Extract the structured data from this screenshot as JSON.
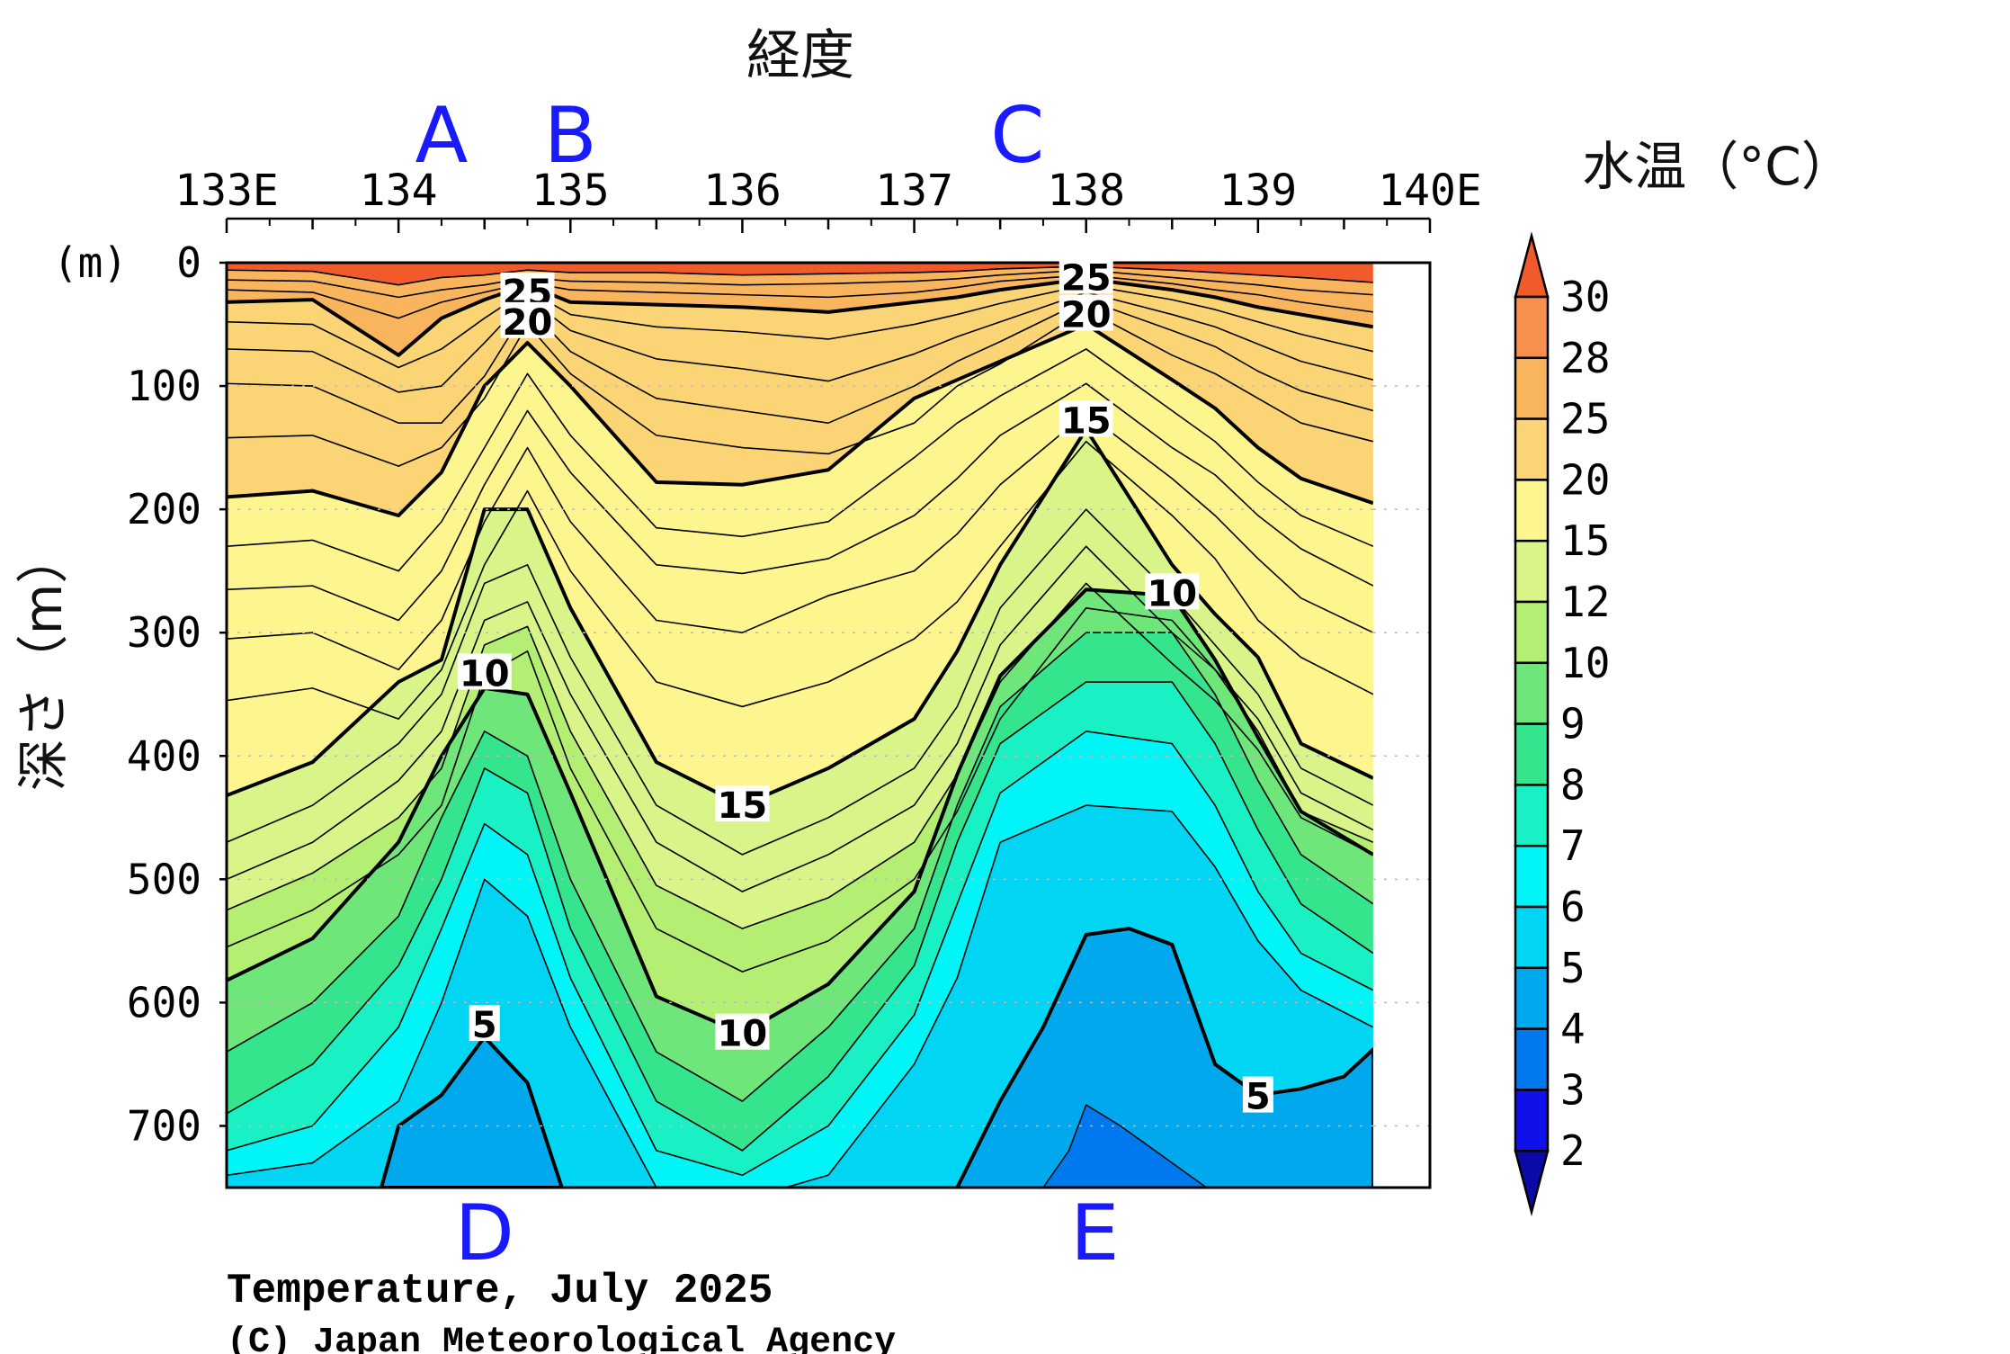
{
  "chart_data": {
    "type": "heatmap",
    "title": "Temperature, July 2025",
    "copyright": "(C) Japan Meteorological Agency",
    "xlabel": "経度",
    "ylabel": "深さ（m）",
    "y_unit_label": "(m)",
    "colorbar_label": "水温（°C）",
    "xlim": [
      133.0,
      140.0
    ],
    "ylim": [
      750,
      0
    ],
    "data_xmax": 139.67,
    "x_ticks": [
      {
        "v": 133,
        "label": "133E"
      },
      {
        "v": 134,
        "label": "134"
      },
      {
        "v": 135,
        "label": "135"
      },
      {
        "v": 136,
        "label": "136"
      },
      {
        "v": 137,
        "label": "137"
      },
      {
        "v": 138,
        "label": "138"
      },
      {
        "v": 139,
        "label": "139"
      },
      {
        "v": 140,
        "label": "140E"
      }
    ],
    "y_ticks": [
      {
        "v": 0,
        "label": "0"
      },
      {
        "v": 100,
        "label": "100"
      },
      {
        "v": 200,
        "label": "200"
      },
      {
        "v": 300,
        "label": "300"
      },
      {
        "v": 400,
        "label": "400"
      },
      {
        "v": 500,
        "label": "500"
      },
      {
        "v": 600,
        "label": "600"
      },
      {
        "v": 700,
        "label": "700"
      }
    ],
    "colorbar": {
      "levels": [
        "30",
        "28",
        "25",
        "20",
        "15",
        "12",
        "10",
        "9",
        "8",
        "7",
        "6",
        "5",
        "4",
        "3",
        "2"
      ],
      "colors": [
        "#f15a2b",
        "#f7904f",
        "#f9b55e",
        "#fbd575",
        "#fdf68f",
        "#d9f58a",
        "#b4ef73",
        "#6fe67a",
        "#35e58e",
        "#19f1c5",
        "#00f6f6",
        "#00d5f4",
        "#00a8ee",
        "#0079ee",
        "#1010e8",
        "#0a0aa8"
      ]
    },
    "station_x": [
      133.0,
      133.5,
      134.0,
      134.25,
      134.5,
      134.75,
      135.0,
      135.5,
      136.0,
      136.5,
      137.0,
      137.25,
      137.5,
      138.0,
      138.5,
      138.75,
      139.0,
      139.25,
      139.67
    ],
    "isotherms": [
      {
        "t": 28,
        "bold": false,
        "depths": [
          6,
          7,
          18,
          12,
          10,
          6,
          8,
          8,
          10,
          9,
          8,
          7,
          5,
          3,
          6,
          8,
          10,
          12,
          16
        ]
      },
      {
        "t": 27,
        "bold": false,
        "depths": [
          14,
          15,
          28,
          22,
          18,
          12,
          15,
          16,
          18,
          17,
          15,
          13,
          10,
          6,
          12,
          15,
          18,
          22,
          26
        ]
      },
      {
        "t": 26,
        "bold": false,
        "depths": [
          22,
          24,
          45,
          32,
          24,
          16,
          22,
          24,
          26,
          28,
          24,
          20,
          15,
          10,
          17,
          22,
          26,
          32,
          40
        ]
      },
      {
        "t": 25,
        "bold": true,
        "depths": [
          32,
          30,
          75,
          45,
          30,
          18,
          32,
          34,
          36,
          40,
          32,
          28,
          22,
          13,
          22,
          28,
          36,
          42,
          52
        ]
      },
      {
        "t": 24,
        "bold": false,
        "depths": [
          48,
          50,
          85,
          70,
          45,
          22,
          42,
          52,
          56,
          62,
          50,
          42,
          33,
          18,
          30,
          38,
          48,
          58,
          72
        ]
      },
      {
        "t": 23,
        "bold": false,
        "depths": [
          70,
          72,
          105,
          100,
          65,
          28,
          55,
          78,
          86,
          96,
          74,
          60,
          48,
          24,
          42,
          52,
          66,
          80,
          95
        ]
      },
      {
        "t": 22,
        "bold": false,
        "depths": [
          98,
          100,
          130,
          130,
          92,
          36,
          72,
          110,
          120,
          130,
          100,
          80,
          64,
          30,
          55,
          68,
          88,
          104,
          120
        ]
      },
      {
        "t": 21,
        "bold": false,
        "depths": [
          142,
          140,
          165,
          150,
          110,
          50,
          90,
          140,
          150,
          155,
          130,
          100,
          82,
          38,
          75,
          90,
          110,
          130,
          145
        ]
      },
      {
        "t": 20,
        "bold": true,
        "depths": [
          190,
          185,
          205,
          170,
          100,
          65,
          100,
          178,
          180,
          168,
          110,
          95,
          80,
          50,
          95,
          118,
          150,
          175,
          195
        ]
      },
      {
        "t": 19,
        "bold": false,
        "depths": [
          230,
          225,
          250,
          210,
          150,
          90,
          140,
          215,
          222,
          210,
          158,
          130,
          108,
          70,
          120,
          145,
          178,
          205,
          230
        ]
      },
      {
        "t": 18,
        "bold": false,
        "depths": [
          265,
          262,
          290,
          250,
          180,
          120,
          170,
          245,
          252,
          240,
          205,
          175,
          140,
          98,
          150,
          172,
          205,
          232,
          262
        ]
      },
      {
        "t": 17,
        "bold": false,
        "depths": [
          305,
          300,
          330,
          290,
          210,
          150,
          210,
          290,
          300,
          270,
          250,
          220,
          180,
          122,
          175,
          205,
          240,
          272,
          300
        ]
      },
      {
        "t": 16,
        "bold": false,
        "depths": [
          355,
          345,
          370,
          330,
          245,
          185,
          250,
          340,
          360,
          340,
          305,
          275,
          230,
          145,
          205,
          240,
          290,
          320,
          350
        ]
      },
      {
        "t": 15,
        "bold": true,
        "depths": [
          432,
          405,
          340,
          322,
          200,
          200,
          280,
          405,
          440,
          410,
          370,
          315,
          245,
          135,
          245,
          285,
          320,
          390,
          418
        ]
      },
      {
        "t": 14,
        "bold": false,
        "depths": [
          470,
          440,
          390,
          350,
          260,
          245,
          320,
          440,
          480,
          450,
          410,
          360,
          280,
          200,
          270,
          310,
          350,
          410,
          440
        ]
      },
      {
        "t": 13,
        "bold": false,
        "depths": [
          500,
          470,
          420,
          380,
          290,
          275,
          350,
          470,
          510,
          480,
          440,
          390,
          310,
          230,
          300,
          330,
          370,
          430,
          460
        ]
      },
      {
        "t": 12,
        "bold": false,
        "depths": [
          525,
          495,
          450,
          410,
          310,
          295,
          380,
          505,
          540,
          515,
          470,
          415,
          340,
          260,
          325,
          355,
          395,
          450,
          480
        ]
      },
      {
        "t": 11,
        "bold": false,
        "depths": [
          555,
          525,
          480,
          440,
          335,
          315,
          410,
          540,
          575,
          550,
          500,
          445,
          370,
          280,
          290,
          330,
          380,
          445,
          470
        ]
      },
      {
        "t": 10,
        "bold": true,
        "depths": [
          582,
          548,
          470,
          400,
          345,
          350,
          430,
          595,
          625,
          585,
          510,
          415,
          335,
          265,
          270,
          322,
          385,
          445,
          480
        ]
      },
      {
        "t": 9,
        "bold": false,
        "depths": [
          640,
          600,
          530,
          450,
          380,
          400,
          500,
          640,
          680,
          620,
          540,
          440,
          360,
          300,
          300,
          350,
          420,
          480,
          520
        ]
      },
      {
        "t": 8,
        "bold": false,
        "depths": [
          690,
          650,
          570,
          500,
          410,
          430,
          540,
          680,
          720,
          660,
          570,
          470,
          390,
          340,
          340,
          390,
          460,
          520,
          560
        ]
      },
      {
        "t": 7,
        "bold": false,
        "depths": [
          720,
          700,
          620,
          540,
          455,
          480,
          580,
          720,
          740,
          700,
          610,
          520,
          430,
          380,
          390,
          440,
          510,
          560,
          590
        ]
      },
      {
        "t": 6,
        "bold": false,
        "depths": [
          740,
          730,
          680,
          600,
          500,
          530,
          620,
          750,
          760,
          740,
          650,
          580,
          470,
          440,
          445,
          490,
          550,
          590,
          620
        ]
      }
    ],
    "deep_regions": [
      {
        "t": 5,
        "bold": true,
        "points": [
          [
            133.9,
            750
          ],
          [
            134.0,
            700
          ],
          [
            134.25,
            675
          ],
          [
            134.5,
            628
          ],
          [
            134.75,
            665
          ],
          [
            134.95,
            750
          ]
        ]
      },
      {
        "t": 5,
        "bold": true,
        "points": [
          [
            137.25,
            750
          ],
          [
            137.5,
            680
          ],
          [
            137.75,
            620
          ],
          [
            138.0,
            545
          ],
          [
            138.25,
            540
          ],
          [
            138.5,
            553
          ],
          [
            138.75,
            650
          ],
          [
            139.0,
            675
          ],
          [
            139.25,
            670
          ],
          [
            139.5,
            660
          ],
          [
            139.67,
            638
          ]
        ]
      },
      {
        "t": 4,
        "bold": false,
        "points": [
          [
            137.75,
            750
          ],
          [
            137.9,
            720
          ],
          [
            138.0,
            683
          ],
          [
            138.2,
            700
          ],
          [
            138.4,
            720
          ],
          [
            138.7,
            750
          ]
        ]
      }
    ],
    "contour_labels": [
      {
        "text": "25",
        "x": 134.75,
        "y": 24
      },
      {
        "text": "20",
        "x": 134.75,
        "y": 48
      },
      {
        "text": "25",
        "x": 138.0,
        "y": 12
      },
      {
        "text": "20",
        "x": 138.0,
        "y": 42
      },
      {
        "text": "15",
        "x": 138.0,
        "y": 128
      },
      {
        "text": "10",
        "x": 134.5,
        "y": 333
      },
      {
        "text": "15",
        "x": 136.0,
        "y": 440
      },
      {
        "text": "10",
        "x": 138.5,
        "y": 268
      },
      {
        "text": "10",
        "x": 136.0,
        "y": 625
      },
      {
        "text": "5",
        "x": 134.5,
        "y": 618
      },
      {
        "text": "5",
        "x": 139.0,
        "y": 676
      }
    ],
    "region_markers": [
      {
        "text": "A",
        "x": 134.25,
        "pos": "top"
      },
      {
        "text": "B",
        "x": 135.0,
        "pos": "top"
      },
      {
        "text": "C",
        "x": 137.6,
        "pos": "top"
      },
      {
        "text": "D",
        "x": 134.5,
        "pos": "bottom"
      },
      {
        "text": "E",
        "x": 138.05,
        "pos": "bottom"
      }
    ]
  }
}
